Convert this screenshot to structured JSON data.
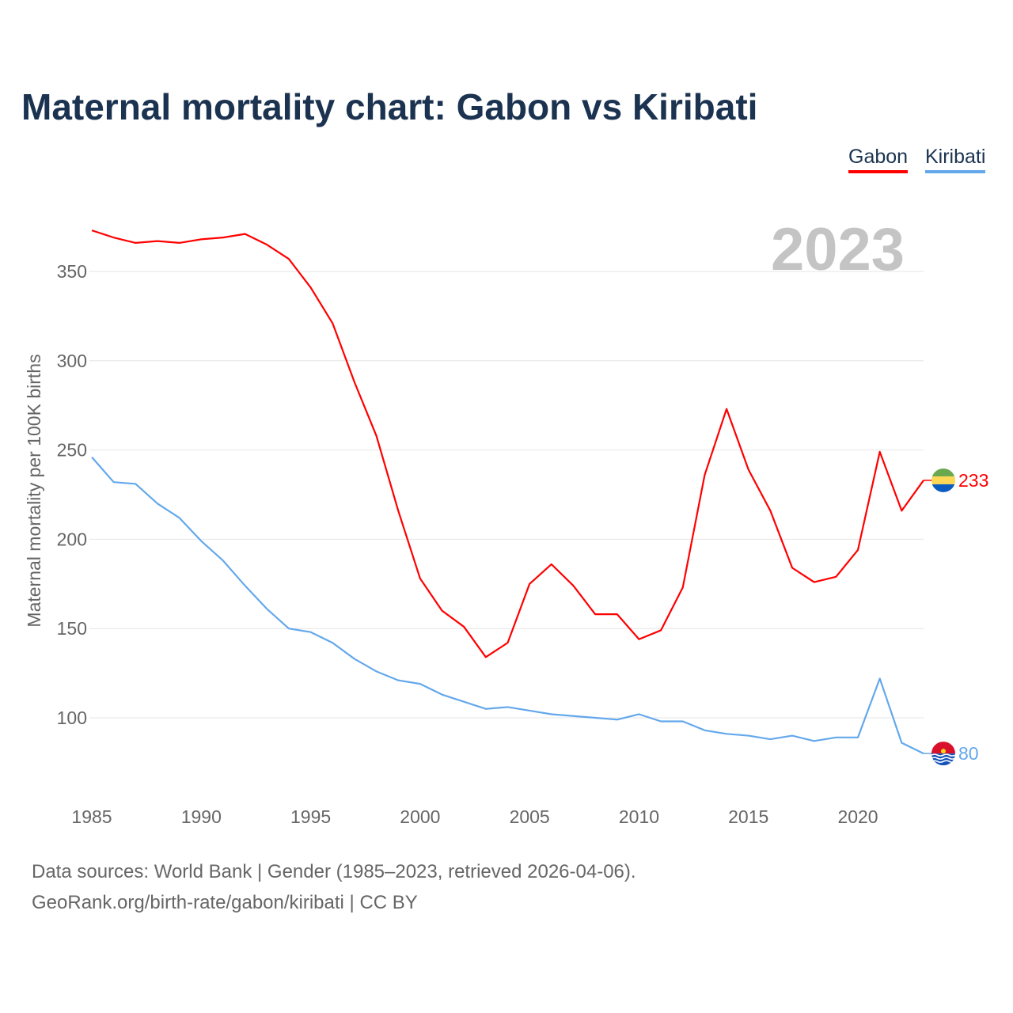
{
  "title": "Maternal mortality chart: Gabon vs Kiribati",
  "year_label": "2023",
  "legend": [
    {
      "name": "Gabon",
      "color": "#ff0000"
    },
    {
      "name": "Kiribati",
      "color": "#64a8ec"
    }
  ],
  "footer": {
    "line1": "Data sources: World Bank | Gender (1985–2023, retrieved 2026-04-06).",
    "line2": "GeoRank.org/birth-rate/gabon/kiribati | CC BY"
  },
  "chart_data": {
    "type": "line",
    "title": "Maternal mortality chart: Gabon vs Kiribati",
    "xlabel": "",
    "ylabel": "Maternal mortality per 100K births",
    "xlim": [
      1985,
      2023
    ],
    "ylim": [
      60,
      375
    ],
    "x_ticks": [
      1985,
      1990,
      1995,
      2000,
      2005,
      2010,
      2015,
      2020
    ],
    "y_ticks": [
      100,
      150,
      200,
      250,
      300,
      350
    ],
    "grid": true,
    "legend_position": "top-right",
    "x": [
      1985,
      1986,
      1987,
      1988,
      1989,
      1990,
      1991,
      1992,
      1993,
      1994,
      1995,
      1996,
      1997,
      1998,
      1999,
      2000,
      2001,
      2002,
      2003,
      2004,
      2005,
      2006,
      2007,
      2008,
      2009,
      2010,
      2011,
      2012,
      2013,
      2014,
      2015,
      2016,
      2017,
      2018,
      2019,
      2020,
      2021,
      2022,
      2023
    ],
    "series": [
      {
        "name": "Gabon",
        "color": "#ff0000",
        "end_label": "233",
        "values": [
          373,
          369,
          366,
          367,
          366,
          368,
          369,
          371,
          365,
          357,
          341,
          321,
          288,
          258,
          216,
          178,
          160,
          151,
          134,
          142,
          175,
          186,
          174,
          158,
          158,
          144,
          149,
          173,
          236,
          273,
          239,
          216,
          184,
          176,
          179,
          194,
          249,
          216,
          233
        ]
      },
      {
        "name": "Kiribati",
        "color": "#64a8ec",
        "end_label": "80",
        "values": [
          246,
          232,
          231,
          220,
          212,
          199,
          188,
          174,
          161,
          150,
          148,
          142,
          133,
          126,
          121,
          119,
          113,
          109,
          105,
          106,
          104,
          102,
          101,
          100,
          99,
          102,
          98,
          98,
          93,
          91,
          90,
          88,
          90,
          87,
          89,
          89,
          122,
          86,
          80
        ]
      }
    ]
  }
}
